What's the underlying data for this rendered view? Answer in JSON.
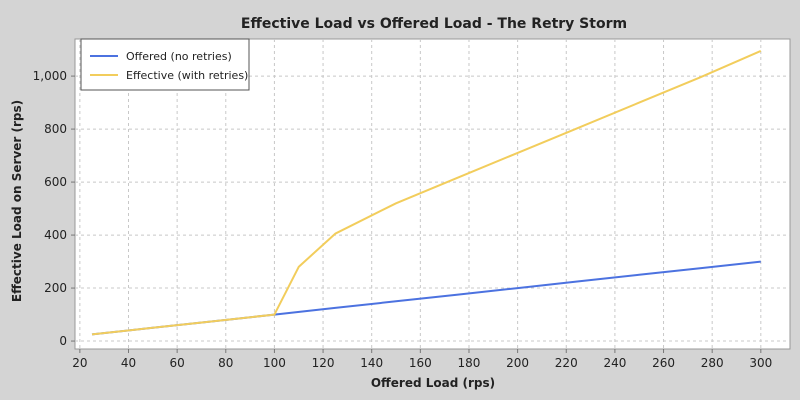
{
  "chart_data": {
    "type": "line",
    "title": "Effective Load vs Offered Load - The Retry Storm",
    "xlabel": "Offered Load (rps)",
    "ylabel": "Effective Load on Server (rps)",
    "xlim": [
      18,
      312
    ],
    "ylim": [
      -30,
      1140
    ],
    "x_ticks": [
      20,
      40,
      60,
      80,
      100,
      120,
      140,
      160,
      180,
      200,
      220,
      240,
      260,
      280,
      300
    ],
    "y_ticks": [
      0,
      200,
      400,
      600,
      800,
      1000
    ],
    "y_tick_labels": [
      "0",
      "200",
      "400",
      "600",
      "800",
      "1,000"
    ],
    "grid": true,
    "legend_placement": "top-left",
    "series": [
      {
        "name": "Offered (no retries)",
        "color": "#4c72e0",
        "x": [
          25,
          50,
          75,
          100,
          125,
          150,
          175,
          200,
          225,
          250,
          275,
          300
        ],
        "y": [
          25,
          50,
          75,
          100,
          125,
          150,
          175,
          200,
          225,
          250,
          275,
          300
        ]
      },
      {
        "name": "Effective (with retries)",
        "color": "#f2cd5c",
        "x": [
          25,
          50,
          75,
          100,
          110,
          125,
          150,
          175,
          200,
          225,
          250,
          275,
          300
        ],
        "y": [
          25,
          50,
          75,
          100,
          280,
          405,
          520,
          615,
          710,
          805,
          900,
          995,
          1095
        ]
      }
    ]
  }
}
